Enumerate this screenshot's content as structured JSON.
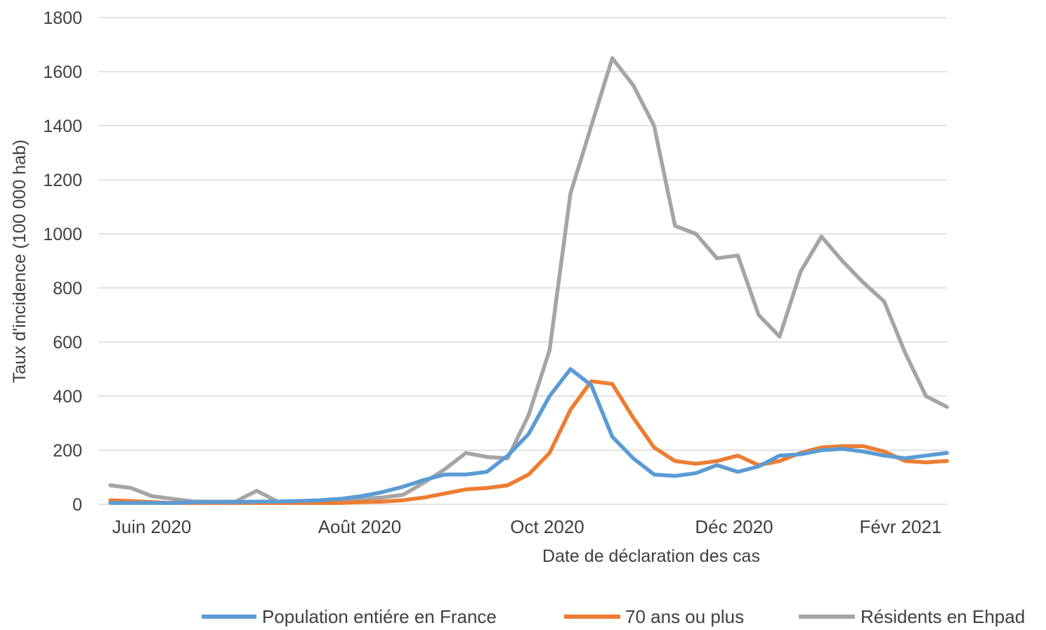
{
  "chart_data": {
    "type": "line",
    "title": "",
    "xlabel": "Date de déclaration des cas",
    "ylabel": "Taux d'incidence (100 000 hab)",
    "ylim": [
      0,
      1800
    ],
    "yticks": [
      0,
      200,
      400,
      600,
      800,
      1000,
      1200,
      1400,
      1600,
      1800
    ],
    "grid": true,
    "legend_position": "bottom",
    "x_tick_labels": [
      "Juin 2020",
      "Août 2020",
      "Oct 2020",
      "Déc 2020",
      "Févr 2021"
    ],
    "x": [
      "2020-05-25",
      "2020-06-01",
      "2020-06-08",
      "2020-06-15",
      "2020-06-22",
      "2020-06-29",
      "2020-07-06",
      "2020-07-13",
      "2020-07-20",
      "2020-07-27",
      "2020-08-03",
      "2020-08-10",
      "2020-08-17",
      "2020-08-24",
      "2020-08-31",
      "2020-09-07",
      "2020-09-14",
      "2020-09-21",
      "2020-09-28",
      "2020-10-05",
      "2020-10-12",
      "2020-10-19",
      "2020-10-26",
      "2020-11-02",
      "2020-11-09",
      "2020-11-16",
      "2020-11-23",
      "2020-11-30",
      "2020-12-07",
      "2020-12-14",
      "2020-12-21",
      "2020-12-28",
      "2021-01-04",
      "2021-01-11",
      "2021-01-18",
      "2021-01-25",
      "2021-02-01",
      "2021-02-08",
      "2021-02-15",
      "2021-02-22",
      "2021-03-01"
    ],
    "series": [
      {
        "name": "Population entiére en France",
        "color": "#5b9bd5",
        "values": [
          5,
          5,
          5,
          5,
          8,
          8,
          8,
          10,
          10,
          12,
          15,
          20,
          30,
          45,
          65,
          90,
          110,
          110,
          120,
          180,
          260,
          400,
          500,
          440,
          250,
          170,
          110,
          105,
          115,
          145,
          120,
          140,
          180,
          185,
          200,
          205,
          195,
          180,
          170,
          180,
          190
        ]
      },
      {
        "name": "70 ans ou plus",
        "color": "#ed7d31",
        "values": [
          15,
          12,
          8,
          5,
          5,
          5,
          5,
          5,
          5,
          5,
          5,
          5,
          8,
          10,
          15,
          25,
          40,
          55,
          60,
          70,
          110,
          190,
          350,
          455,
          445,
          320,
          210,
          160,
          150,
          160,
          180,
          145,
          160,
          190,
          210,
          215,
          215,
          195,
          160,
          155,
          160
        ]
      },
      {
        "name": "Résidents en Ehpad",
        "color": "#a5a5a5",
        "values": [
          70,
          60,
          30,
          20,
          10,
          10,
          10,
          50,
          10,
          10,
          10,
          10,
          20,
          25,
          35,
          80,
          130,
          190,
          175,
          170,
          330,
          570,
          1150,
          1400,
          1650,
          1550,
          1400,
          1030,
          1000,
          910,
          920,
          700,
          620,
          860,
          990,
          900,
          820,
          750,
          560,
          400,
          360
        ]
      }
    ]
  }
}
